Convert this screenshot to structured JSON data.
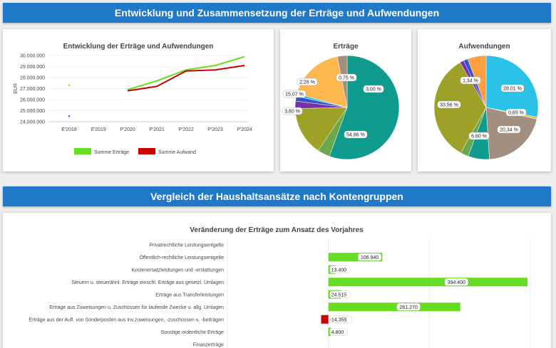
{
  "header1": "Entwicklung und Zusammensetzung der Erträge und Aufwendungen",
  "header2": "Vergleich der Haushaltsansätze nach Kontengruppen",
  "colors": {
    "banner": "#1f78c8",
    "green": "#66dd22",
    "red": "#cc0000"
  },
  "chart_data": [
    {
      "type": "line",
      "title": "Entwicklung der Erträge und Aufwendungen",
      "ylabel": "EUR",
      "categories": [
        "E'2018",
        "E'2019",
        "P'2020",
        "P'2021",
        "P'2022",
        "P'2023",
        "P'2024"
      ],
      "yticks": [
        "24.000.000",
        "25.000.000",
        "26.000.000",
        "27.000.000",
        "28.000.000",
        "29.000.000",
        "30.000.000"
      ],
      "ylim": [
        24000000,
        30000000
      ],
      "legend_position": "bottom",
      "series": [
        {
          "name": "Summe Erträge",
          "color": "#66dd22",
          "values": [
            27300000,
            null,
            26900000,
            27700000,
            28700000,
            29100000,
            29900000
          ]
        },
        {
          "name": "Summe Aufwand",
          "color": "#cc0000",
          "values": [
            24500000,
            null,
            26800000,
            27200000,
            28600000,
            28700000,
            29100000
          ]
        }
      ]
    },
    {
      "type": "pie",
      "title": "Erträge",
      "slices": [
        {
          "value": 54.86,
          "label": "54,86 %",
          "color": "#0f9b8e"
        },
        {
          "value": 3.8,
          "label": "3,80 %",
          "color": "#6aa84f"
        },
        {
          "value": 15.07,
          "label": "15,07 %",
          "color": "#9ea127"
        },
        {
          "value": 2.26,
          "label": "2,26 %",
          "color": "#7b2fa8"
        },
        {
          "value": 1.5,
          "label": "",
          "color": "#3155c9"
        },
        {
          "value": 0.75,
          "label": "0,75 %",
          "color": "#2bb5e8"
        },
        {
          "value": 17.5,
          "label": "",
          "color": "#ffb84d"
        },
        {
          "value": 3.0,
          "label": "3,00 %",
          "color": "#a38f80"
        }
      ]
    },
    {
      "type": "pie",
      "title": "Aufwendungen",
      "slices": [
        {
          "value": 28.01,
          "label": "28,01 %",
          "color": "#2bc2e8"
        },
        {
          "value": 0.65,
          "label": "0,65 %",
          "color": "#f0c040"
        },
        {
          "value": 20.34,
          "label": "20,34 %",
          "color": "#a38f80"
        },
        {
          "value": 6.6,
          "label": "6,60 %",
          "color": "#0f9b8e"
        },
        {
          "value": 2.5,
          "label": "",
          "color": "#6aa84f"
        },
        {
          "value": 33.56,
          "label": "33,56 %",
          "color": "#9ea127"
        },
        {
          "value": 1.2,
          "label": "",
          "color": "#7b2fa8"
        },
        {
          "value": 1.34,
          "label": "1,34 %",
          "color": "#3155c9"
        },
        {
          "value": 5.8,
          "label": "",
          "color": "#ff9f40"
        }
      ]
    },
    {
      "type": "bar",
      "orientation": "horizontal",
      "title": "Veränderung der Erträge zum Ansatz des Vorjahres",
      "categories": [
        "Privatrechtliche Leistungsentgelte",
        "Öffentlich-rechtliche Leistungsentgelte",
        "Kostenersatzleistungen und -erstattungen",
        "Steuern u. steuerähnl. Erträge einschl. Erträge aus gesetzl. Umlagen",
        "Erträge aus Transferleistungen",
        "Erträge aus Zuweisungen u. Zuschüssen für laufende Zwecke u. allg. Umlagen",
        "Erträge aus der Aufl. von Sonderposten aus inv.zuweisungen, -zuschüssen u. -beiträgen",
        "Sonstige ordentliche Erträge",
        "Finanzerträge"
      ],
      "values": [
        0,
        106940,
        13400,
        394400,
        24515,
        261270,
        -14355,
        4800,
        0
      ],
      "labels": [
        "",
        "106.940",
        "13.400",
        "394.400",
        "24.515",
        "261.270",
        "-14.355",
        "4.800",
        ""
      ],
      "xlim": [
        -200000,
        400000
      ]
    }
  ]
}
